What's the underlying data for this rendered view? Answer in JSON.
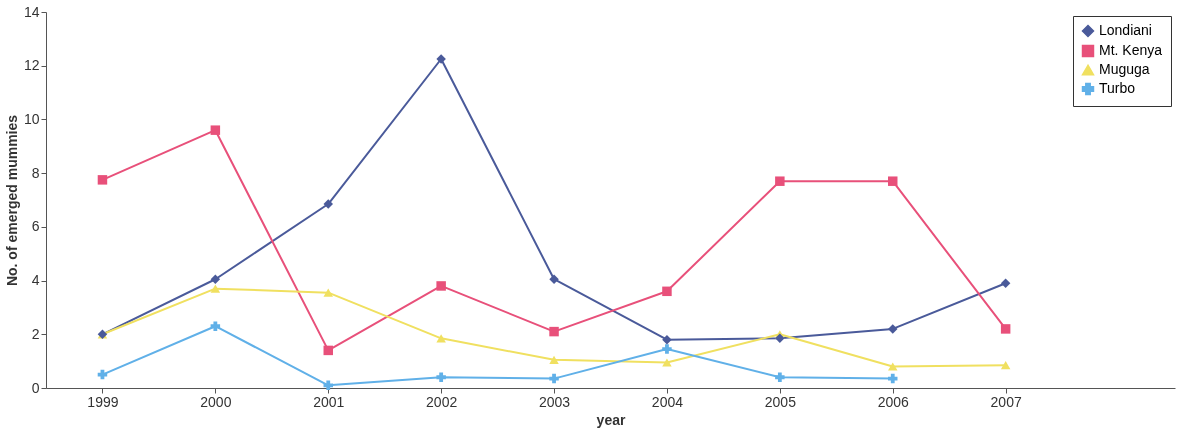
{
  "chart_data": {
    "type": "line",
    "xlabel": "year",
    "ylabel": "No. of emerged mummies",
    "categories": [
      "1999",
      "2000",
      "2001",
      "2002",
      "2003",
      "2004",
      "2005",
      "2006",
      "2007"
    ],
    "series": [
      {
        "name": "Londiani",
        "color": "#4a5a9a",
        "marker": "diamond",
        "values": [
          2.0,
          4.05,
          6.85,
          12.25,
          4.05,
          1.8,
          1.85,
          2.2,
          3.9
        ]
      },
      {
        "name": "Mt. Kenya",
        "color": "#e8507a",
        "marker": "square",
        "values": [
          7.75,
          9.6,
          1.4,
          3.8,
          2.1,
          3.6,
          7.7,
          7.7,
          2.2
        ]
      },
      {
        "name": "Muguga",
        "color": "#f0e060",
        "marker": "triangle",
        "values": [
          2.0,
          3.7,
          3.55,
          1.85,
          1.05,
          0.95,
          2.0,
          0.8,
          0.85
        ]
      },
      {
        "name": "Turbo",
        "color": "#60b0e8",
        "marker": "cross",
        "values": [
          0.5,
          2.3,
          0.1,
          0.4,
          0.35,
          1.45,
          0.4,
          0.35,
          null
        ]
      }
    ],
    "ylim": [
      0,
      14
    ],
    "yticks": [
      0,
      2,
      4,
      6,
      8,
      10,
      12,
      14
    ],
    "grid": false,
    "legend": "top right"
  }
}
